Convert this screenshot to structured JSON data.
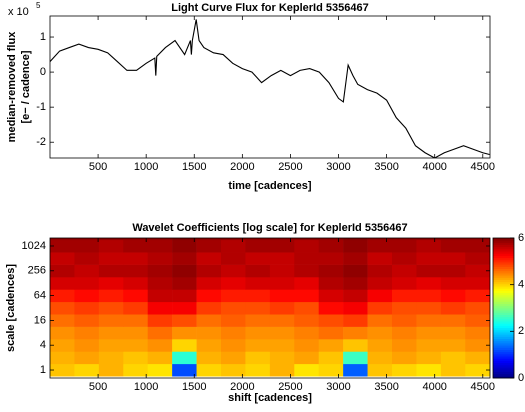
{
  "chart_data": [
    {
      "type": "line",
      "title": "Light Curve Flux for KeplerId 5356467",
      "xlabel": "time [cadences]",
      "ylabel": [
        "median-removed flux",
        "[e− / cadence]"
      ],
      "y_multiplier": {
        "base": "x 10",
        "exponent": "5"
      },
      "color": "#000000",
      "x": [
        0,
        100,
        200,
        300,
        400,
        500,
        600,
        700,
        800,
        900,
        1000,
        1090,
        1100,
        1110,
        1200,
        1300,
        1400,
        1460,
        1470,
        1480,
        1520,
        1550,
        1600,
        1700,
        1800,
        1900,
        2000,
        2100,
        2200,
        2300,
        2400,
        2500,
        2600,
        2700,
        2800,
        2900,
        3000,
        3050,
        3100,
        3150,
        3200,
        3300,
        3400,
        3500,
        3600,
        3700,
        3800,
        3900,
        4000,
        4100,
        4200,
        4300,
        4400,
        4500,
        4570
      ],
      "y": [
        0.3,
        0.6,
        0.7,
        0.8,
        0.7,
        0.65,
        0.55,
        0.3,
        0.05,
        0.05,
        0.25,
        0.4,
        -0.1,
        0.45,
        0.7,
        0.9,
        0.5,
        0.9,
        0.5,
        0.9,
        1.5,
        0.9,
        0.7,
        0.55,
        0.5,
        0.25,
        0.1,
        0.0,
        -0.3,
        -0.1,
        0.05,
        -0.1,
        0.05,
        0.1,
        0.0,
        -0.3,
        -0.75,
        -0.85,
        0.2,
        -0.1,
        -0.35,
        -0.5,
        -0.6,
        -0.8,
        -1.3,
        -1.6,
        -2.1,
        -2.3,
        -2.45,
        -2.3,
        -2.2,
        -2.1,
        -2.2,
        -2.3,
        -2.35
      ],
      "xlim": [
        0,
        4575
      ],
      "ylim": [
        -2.45,
        1.6
      ],
      "xticks": [
        500,
        1000,
        1500,
        2000,
        2500,
        3000,
        3500,
        4000,
        4500
      ],
      "yticks": [
        -2,
        -1,
        0,
        1
      ]
    },
    {
      "type": "heatmap",
      "title": "Wavelet Coefficients [log scale] for KeplerId 5356467",
      "xlabel": "shift [cadences]",
      "ylabel": "scale [cadences]",
      "x": [
        127,
        381,
        635,
        889,
        1143,
        1397,
        1651,
        1905,
        2159,
        2413,
        2667,
        2921,
        3175,
        3429,
        3683,
        3937,
        4191,
        4445
      ],
      "y": [
        1,
        2,
        4,
        8,
        16,
        32,
        64,
        128,
        256,
        512,
        1024,
        2048
      ],
      "values": [
        [
          4.1,
          4.0,
          4.2,
          4.0,
          3.9,
          1.2,
          4.0,
          4.1,
          4.0,
          4.2,
          3.9,
          4.0,
          1.3,
          4.1,
          4.0,
          3.9,
          4.1,
          4.0
        ],
        [
          4.2,
          4.3,
          4.2,
          4.1,
          4.2,
          2.5,
          4.2,
          4.3,
          4.1,
          4.2,
          4.3,
          4.1,
          2.6,
          4.2,
          4.3,
          4.2,
          4.1,
          4.2
        ],
        [
          4.3,
          4.4,
          4.3,
          4.3,
          4.4,
          4.0,
          4.3,
          4.4,
          4.3,
          4.3,
          4.4,
          4.3,
          4.1,
          4.3,
          4.4,
          4.3,
          4.3,
          4.4
        ],
        [
          4.4,
          4.5,
          4.4,
          4.4,
          4.6,
          4.4,
          4.4,
          4.5,
          4.4,
          4.4,
          4.5,
          4.6,
          4.5,
          4.4,
          4.5,
          4.4,
          4.4,
          4.5
        ],
        [
          4.6,
          4.7,
          4.6,
          4.6,
          4.9,
          4.8,
          4.6,
          4.7,
          4.6,
          4.6,
          4.7,
          4.8,
          4.9,
          4.6,
          4.7,
          4.6,
          4.6,
          4.7
        ],
        [
          4.8,
          4.9,
          4.8,
          4.9,
          5.3,
          5.3,
          4.9,
          4.8,
          4.8,
          4.9,
          4.8,
          5.2,
          5.3,
          4.9,
          4.8,
          4.8,
          4.9,
          4.8
        ],
        [
          5.1,
          5.2,
          5.1,
          5.2,
          5.6,
          5.6,
          5.2,
          5.1,
          5.1,
          5.2,
          5.2,
          5.5,
          5.6,
          5.3,
          5.1,
          5.1,
          5.2,
          5.1
        ],
        [
          5.5,
          5.5,
          5.4,
          5.5,
          5.7,
          5.8,
          5.5,
          5.4,
          5.5,
          5.5,
          5.4,
          5.7,
          5.8,
          5.6,
          5.5,
          5.4,
          5.5,
          5.5
        ],
        [
          5.7,
          5.6,
          5.7,
          5.7,
          5.8,
          5.9,
          5.7,
          5.6,
          5.7,
          5.6,
          5.7,
          5.8,
          5.9,
          5.7,
          5.6,
          5.7,
          5.7,
          5.6
        ],
        [
          5.6,
          5.7,
          5.6,
          5.6,
          5.7,
          5.8,
          5.6,
          5.7,
          5.6,
          5.6,
          5.7,
          5.7,
          5.8,
          5.6,
          5.7,
          5.6,
          5.6,
          5.7
        ],
        [
          5.8,
          5.8,
          5.7,
          5.8,
          5.8,
          5.9,
          5.8,
          5.7,
          5.8,
          5.8,
          5.7,
          5.8,
          5.9,
          5.8,
          5.8,
          5.7,
          5.8,
          5.8
        ],
        [
          5.9,
          5.9,
          5.9,
          5.9,
          5.9,
          6.0,
          5.9,
          5.9,
          5.9,
          5.9,
          5.9,
          5.9,
          6.0,
          5.9,
          5.9,
          5.9,
          5.9,
          5.9
        ]
      ],
      "xlim": [
        0,
        4575
      ],
      "ylim": [
        0.64,
        1600
      ],
      "log_y": true,
      "xticks": [
        500,
        1000,
        1500,
        2000,
        2500,
        3000,
        3500,
        4000,
        4500
      ],
      "yticks": [
        1,
        4,
        16,
        64,
        256,
        1024
      ],
      "colorbar": {
        "clim": [
          0,
          6
        ],
        "ticks": [
          0,
          2,
          4,
          6
        ],
        "colormap": "jet"
      }
    }
  ]
}
